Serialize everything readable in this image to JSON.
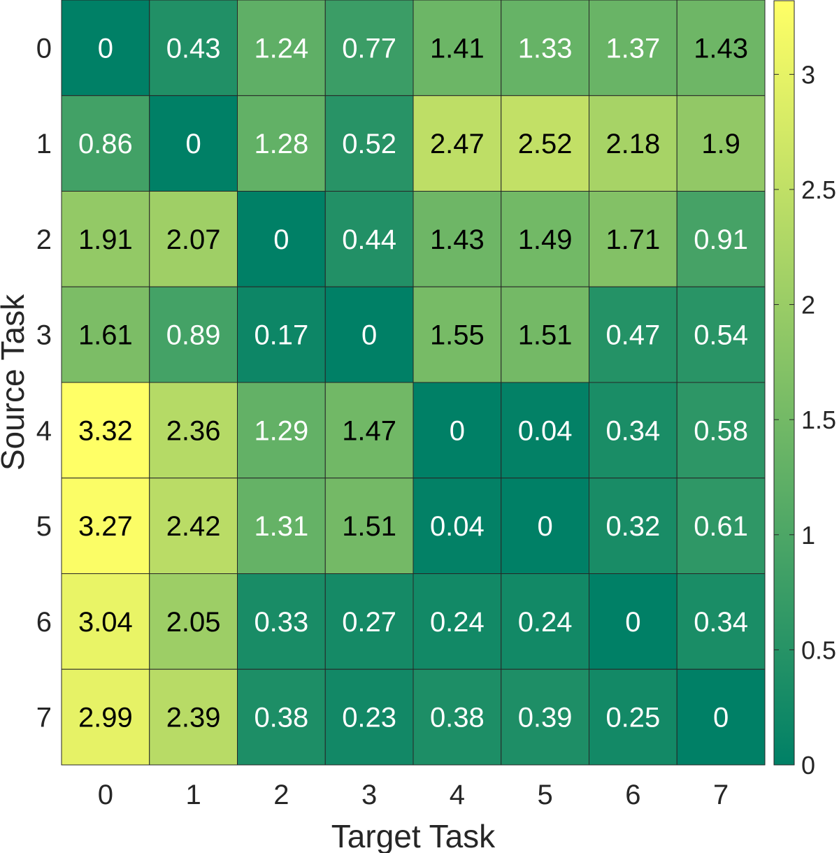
{
  "chart_data": {
    "type": "heatmap",
    "xlabel": "Target Task",
    "ylabel": "Source Task",
    "x_categories": [
      "0",
      "1",
      "2",
      "3",
      "4",
      "5",
      "6",
      "7"
    ],
    "y_categories": [
      "0",
      "1",
      "2",
      "3",
      "4",
      "5",
      "6",
      "7"
    ],
    "values": [
      [
        0,
        0.43,
        1.24,
        0.77,
        1.41,
        1.33,
        1.37,
        1.43
      ],
      [
        0.86,
        0,
        1.28,
        0.52,
        2.47,
        2.52,
        2.18,
        1.9
      ],
      [
        1.91,
        2.07,
        0,
        0.44,
        1.43,
        1.49,
        1.71,
        0.91
      ],
      [
        1.61,
        0.89,
        0.17,
        0,
        1.55,
        1.51,
        0.47,
        0.54
      ],
      [
        3.32,
        2.36,
        1.29,
        1.47,
        0,
        0.04,
        0.34,
        0.58
      ],
      [
        3.27,
        2.42,
        1.31,
        1.51,
        0.04,
        0,
        0.32,
        0.61
      ],
      [
        3.04,
        2.05,
        0.33,
        0.27,
        0.24,
        0.24,
        0,
        0.34
      ],
      [
        2.99,
        2.39,
        0.38,
        0.23,
        0.38,
        0.39,
        0.25,
        0
      ]
    ],
    "colorbar": {
      "range": [
        0,
        3.32
      ],
      "ticks": [
        0,
        0.5,
        1,
        1.5,
        2,
        2.5,
        3
      ],
      "tick_labels": [
        "0",
        "0.5",
        "1",
        "1.5",
        "2",
        "2.5",
        "3"
      ],
      "colormap": "summer",
      "low_color": "#008066",
      "high_color": "#ffff66"
    },
    "grid": true,
    "colorbar_position": "right"
  }
}
